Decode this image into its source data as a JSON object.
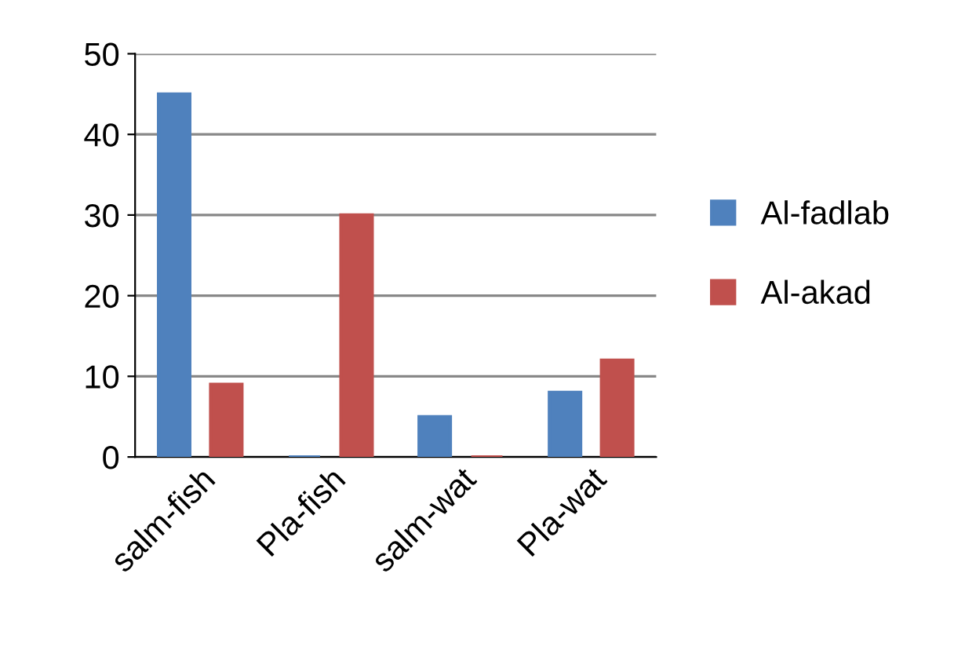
{
  "chart_data": {
    "type": "bar",
    "categories": [
      "salm-fish",
      "Pla-fish",
      "salm-wat",
      "Pla-wat"
    ],
    "series": [
      {
        "name": "Al-fadlab",
        "color": "#4f81bd",
        "values": [
          45,
          0,
          5,
          8
        ]
      },
      {
        "name": "Al-akad",
        "color": "#c0504d",
        "values": [
          9,
          30,
          0,
          12
        ]
      }
    ],
    "ylim": [
      0,
      50
    ],
    "yticks": [
      0,
      10,
      20,
      30,
      40,
      50
    ],
    "grid": "y",
    "legend": "right"
  }
}
